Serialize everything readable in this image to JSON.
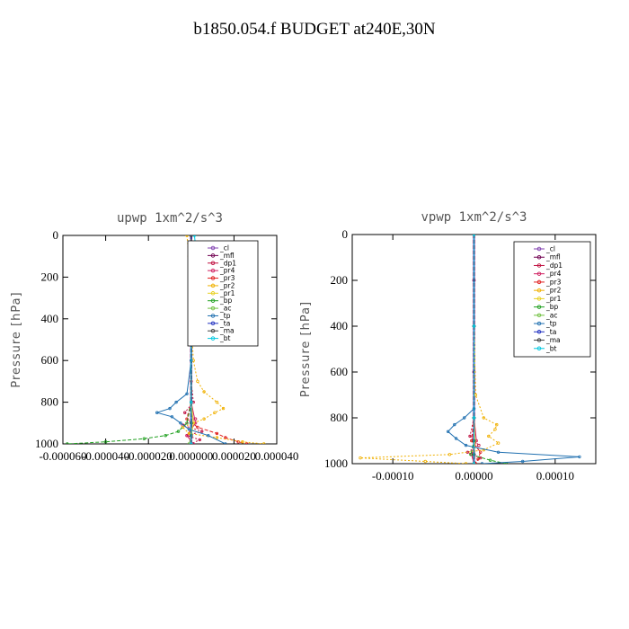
{
  "title": "b1850.054.f  BUDGET at240E,30N",
  "chart_data": [
    {
      "type": "line",
      "title": "upwp   1xm^2/s^3",
      "ylabel": "Pressure [hPa]",
      "xlabel": "",
      "xlim": [
        -6e-05,
        4e-05
      ],
      "ylim": [
        1000,
        0
      ],
      "x_ticks": [
        -6e-05,
        -4e-05,
        -2e-05,
        0.0,
        2e-05,
        4e-05
      ],
      "x_tick_labels": [
        "-0.000060",
        "-0.000040",
        "-0.000020",
        "0.000000",
        "0.000020",
        "0.000040"
      ],
      "y_ticks": [
        0,
        200,
        400,
        600,
        800,
        1000
      ],
      "y_tick_labels": [
        "0",
        "200",
        "400",
        "600",
        "800",
        "1000"
      ],
      "legend_position": "top-right",
      "series": [
        {
          "name": "_cl",
          "color": "#8040b0",
          "p": [
            0,
            200,
            400,
            600,
            800,
            900,
            960,
            1000
          ],
          "x": [
            0,
            0,
            0,
            0,
            0,
            0,
            0,
            0
          ]
        },
        {
          "name": "_mfl",
          "color": "#700050",
          "p": [
            0,
            200,
            400,
            600,
            800,
            900,
            960,
            1000
          ],
          "x": [
            0,
            0,
            0,
            0,
            0,
            0,
            0,
            0
          ]
        },
        {
          "name": "_dp1",
          "color": "#c01040",
          "p": [
            0,
            200,
            400,
            700,
            800,
            850,
            880,
            910,
            940,
            960,
            980,
            1000
          ],
          "x": [
            0,
            0,
            0,
            0,
            1e-06,
            -3e-06,
            2e-06,
            -4e-06,
            5e-06,
            -2e-06,
            4e-06,
            0
          ]
        },
        {
          "name": "_pr4",
          "color": "#d02060",
          "p": [
            0,
            400,
            800,
            900,
            960,
            1000
          ],
          "x": [
            0,
            0,
            0,
            2e-06,
            -2e-06,
            1e-06
          ]
        },
        {
          "name": "_pr3",
          "color": "#e02020",
          "p": [
            0,
            400,
            800,
            880,
            920,
            950,
            970,
            990,
            1000
          ],
          "x": [
            0,
            0,
            0,
            -2e-06,
            3e-06,
            1.2e-05,
            1.6e-05,
            2.2e-05,
            2.6e-05
          ]
        },
        {
          "name": "_pr2",
          "color": "#f0b000",
          "p": [
            0,
            100,
            200,
            400,
            600,
            700,
            750,
            800,
            830,
            850,
            880,
            920,
            950,
            970,
            990,
            1000
          ],
          "x": [
            -2e-06,
            -1e-06,
            0,
            0,
            1e-06,
            3e-06,
            6e-06,
            1.2e-05,
            1.5e-05,
            1.1e-05,
            6e-06,
            -4e-06,
            -1e-06,
            1.2e-05,
            2.4e-05,
            3.4e-05
          ]
        },
        {
          "name": "_pr1",
          "color": "#e8d020",
          "p": [
            0,
            400,
            800,
            900,
            960,
            1000
          ],
          "x": [
            0,
            0,
            0,
            1e-06,
            0,
            0
          ]
        },
        {
          "name": "_bp",
          "color": "#20a020",
          "p": [
            0,
            400,
            800,
            900,
            940,
            960,
            975,
            990,
            1000
          ],
          "x": [
            0,
            0,
            0,
            -2e-06,
            -6e-06,
            -1.2e-05,
            -2.2e-05,
            -4e-05,
            -5.8e-05
          ]
        },
        {
          "name": "_ac",
          "color": "#70c040",
          "p": [
            0,
            400,
            800,
            900,
            960,
            1000
          ],
          "x": [
            0,
            0,
            0,
            0,
            0,
            -1e-06
          ]
        },
        {
          "name": "_tp",
          "color": "#2070b0",
          "p": [
            0,
            200,
            400,
            600,
            760,
            800,
            830,
            850,
            870,
            900,
            930,
            960,
            1000
          ],
          "x": [
            0,
            0,
            0,
            0,
            -2e-06,
            -7e-06,
            -1e-05,
            -1.6e-05,
            -9e-06,
            -5e-06,
            -1e-06,
            8e-06,
            1.6e-05
          ]
        },
        {
          "name": "_ta",
          "color": "#2030c0",
          "p": [
            0,
            400,
            800,
            900,
            960,
            1000
          ],
          "x": [
            0,
            0,
            0,
            0,
            0,
            0
          ]
        },
        {
          "name": "_ma",
          "color": "#404040",
          "p": [
            0,
            400,
            800,
            900,
            960,
            1000
          ],
          "x": [
            0,
            0,
            0,
            0,
            0,
            0
          ]
        },
        {
          "name": "_bt",
          "color": "#00c8e0",
          "p": [
            0,
            50,
            100,
            150,
            200,
            400,
            800,
            1000
          ],
          "x": [
            1.5e-06,
            2e-06,
            2e-06,
            1e-06,
            0,
            0,
            0,
            0
          ]
        }
      ]
    },
    {
      "type": "line",
      "title": "vpwp   1xm^2/s^3",
      "ylabel": "Pressure [hPa]",
      "xlabel": "",
      "xlim": [
        -0.00015,
        0.00015
      ],
      "ylim": [
        1000,
        0
      ],
      "x_ticks": [
        -0.0001,
        0.0,
        0.0001
      ],
      "x_tick_labels": [
        "-0.00010",
        "0.00000",
        "0.00010"
      ],
      "y_ticks": [
        0,
        200,
        400,
        600,
        800,
        1000
      ],
      "y_tick_labels": [
        "0",
        "200",
        "400",
        "600",
        "800",
        "1000"
      ],
      "legend_position": "top-right",
      "series": [
        {
          "name": "_cl",
          "color": "#8040b0",
          "p": [
            0,
            200,
            400,
            600,
            800,
            900,
            960,
            1000
          ],
          "x": [
            0,
            0,
            0,
            0,
            0,
            0,
            0,
            0
          ]
        },
        {
          "name": "_mfl",
          "color": "#700050",
          "p": [
            0,
            200,
            400,
            600,
            800,
            900,
            960,
            1000
          ],
          "x": [
            0,
            0,
            0,
            0,
            0,
            0,
            0,
            0
          ]
        },
        {
          "name": "_dp1",
          "color": "#c01040",
          "p": [
            0,
            400,
            800,
            880,
            920,
            950,
            975,
            1000
          ],
          "x": [
            0,
            0,
            0,
            -5e-06,
            6e-06,
            -8e-06,
            8e-06,
            0
          ]
        },
        {
          "name": "_pr4",
          "color": "#d02060",
          "p": [
            0,
            400,
            800,
            900,
            960,
            1000
          ],
          "x": [
            0,
            0,
            0,
            3e-06,
            -3e-06,
            0
          ]
        },
        {
          "name": "_pr3",
          "color": "#e02020",
          "p": [
            0,
            400,
            800,
            900,
            950,
            980,
            1000
          ],
          "x": [
            0,
            0,
            0,
            -3e-06,
            8e-06,
            5e-06,
            2e-06
          ]
        },
        {
          "name": "_pr2",
          "color": "#f0b000",
          "p": [
            0,
            400,
            700,
            800,
            830,
            850,
            880,
            910,
            940,
            960,
            975,
            990,
            1000
          ],
          "x": [
            0,
            0,
            2e-06,
            1.2e-05,
            2.8e-05,
            2.6e-05,
            1.8e-05,
            3e-05,
            1.2e-05,
            -3e-05,
            -0.00014,
            -6e-05,
            -1e-05
          ]
        },
        {
          "name": "_pr1",
          "color": "#e8d020",
          "p": [
            0,
            400,
            800,
            900,
            960,
            1000
          ],
          "x": [
            0,
            0,
            0,
            1e-06,
            0,
            0
          ]
        },
        {
          "name": "_bp",
          "color": "#20a020",
          "p": [
            0,
            400,
            800,
            900,
            960,
            985,
            1000
          ],
          "x": [
            0,
            0,
            0,
            0,
            -4e-06,
            2e-05,
            4e-05
          ]
        },
        {
          "name": "_ac",
          "color": "#70c040",
          "p": [
            0,
            400,
            800,
            900,
            960,
            1000
          ],
          "x": [
            0,
            0,
            0,
            0,
            0,
            0
          ]
        },
        {
          "name": "_tp",
          "color": "#2070b0",
          "p": [
            0,
            400,
            760,
            800,
            830,
            860,
            890,
            920,
            950,
            970,
            990,
            1000
          ],
          "x": [
            0,
            0,
            0,
            -1.2e-05,
            -2.4e-05,
            -3.2e-05,
            -2.2e-05,
            -1e-05,
            3e-05,
            0.00013,
            6e-05,
            1e-05
          ]
        },
        {
          "name": "_ta",
          "color": "#2030c0",
          "p": [
            0,
            400,
            800,
            900,
            960,
            1000
          ],
          "x": [
            0,
            0,
            0,
            0,
            0,
            0
          ]
        },
        {
          "name": "_ma",
          "color": "#404040",
          "p": [
            0,
            400,
            800,
            900,
            960,
            1000
          ],
          "x": [
            0,
            0,
            0,
            0,
            0,
            0
          ]
        },
        {
          "name": "_bt",
          "color": "#00c8e0",
          "p": [
            0,
            400,
            800,
            1000
          ],
          "x": [
            0,
            0,
            0,
            0
          ]
        }
      ]
    }
  ]
}
